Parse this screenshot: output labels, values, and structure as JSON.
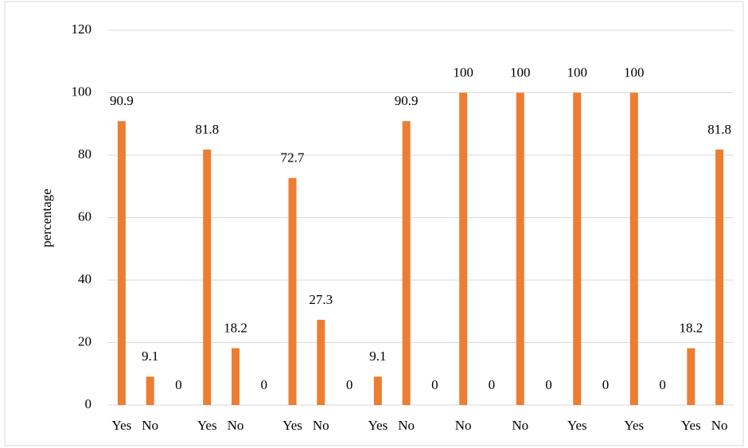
{
  "chart_data": {
    "type": "bar",
    "y_label": "percentage",
    "categories": [
      "Yes",
      "No",
      null,
      "Yes",
      "No",
      null,
      "Yes",
      "No",
      null,
      "Yes",
      "No",
      null,
      "No",
      null,
      "No",
      null,
      "Yes",
      null,
      "Yes",
      null,
      "Yes",
      "No"
    ],
    "values": [
      90.9,
      9.1,
      0,
      81.8,
      18.2,
      0,
      72.7,
      27.3,
      0,
      9.1,
      90.9,
      0,
      100,
      0,
      100,
      0,
      100,
      0,
      100,
      0,
      18.2,
      81.8
    ],
    "color": "#ed7d31",
    "ylim": [
      0,
      120
    ],
    "yticks": [
      0,
      20,
      40,
      60,
      80,
      100,
      120
    ],
    "grid": true
  }
}
